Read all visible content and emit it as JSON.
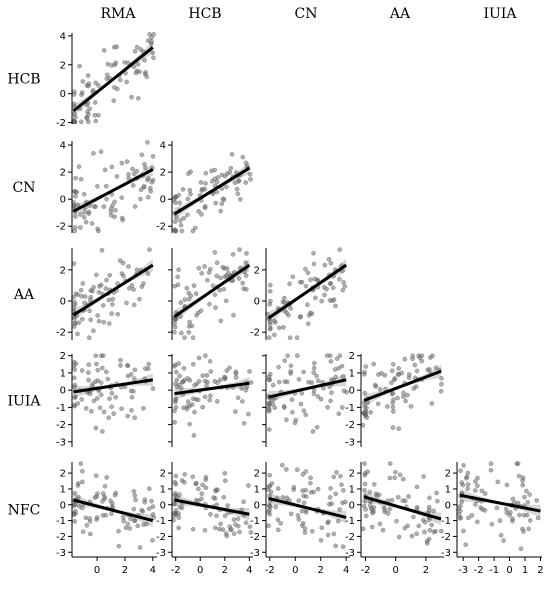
{
  "chart_data": {
    "type": "scatter",
    "variables": [
      "RMA",
      "HCB",
      "CN",
      "AA",
      "IUIA",
      "NFC"
    ],
    "column_titles": [
      "RMA",
      "HCB",
      "CN",
      "AA",
      "IUIA"
    ],
    "row_titles": [
      "HCB",
      "CN",
      "AA",
      "IUIA",
      "NFC"
    ],
    "x_ranges": {
      "RMA": [
        -1.8,
        4.3
      ],
      "HCB": [
        -2.3,
        4.3
      ],
      "CN": [
        -2.3,
        4.3
      ],
      "AA": [
        -2.3,
        3.2
      ],
      "IUIA": [
        -3.4,
        2.1
      ]
    },
    "x_ticks": {
      "RMA": [
        0,
        2,
        4
      ],
      "HCB": [
        -2,
        0,
        2,
        4
      ],
      "CN": [
        -2,
        0,
        2,
        4
      ],
      "AA": [
        -2,
        0,
        2
      ],
      "IUIA": [
        -3,
        -2,
        -1,
        0,
        1,
        2
      ]
    },
    "y_ranges": {
      "HCB": [
        -2.1,
        4.2
      ],
      "CN": [
        -2.5,
        4.3
      ],
      "AA": [
        -2.5,
        3.4
      ],
      "IUIA": [
        -3.3,
        2.1
      ],
      "NFC": [
        -3.3,
        2.7
      ]
    },
    "y_ticks": {
      "HCB": [
        -2,
        0,
        2,
        4
      ],
      "CN": [
        -2,
        0,
        2,
        4
      ],
      "AA": [
        -2,
        0,
        2
      ],
      "IUIA": [
        -3,
        -2,
        -1,
        0,
        1,
        2
      ],
      "NFC": [
        -3,
        -2,
        -1,
        0,
        1,
        2
      ]
    },
    "panels": [
      {
        "row": "HCB",
        "col": "RMA",
        "fit": [
          [
            -1.7,
            -1.2
          ],
          [
            4.0,
            3.2
          ]
        ]
      },
      {
        "row": "CN",
        "col": "RMA",
        "fit": [
          [
            -1.7,
            -0.9
          ],
          [
            4.0,
            2.2
          ]
        ]
      },
      {
        "row": "CN",
        "col": "HCB",
        "fit": [
          [
            -2.1,
            -1.1
          ],
          [
            4.0,
            2.3
          ]
        ]
      },
      {
        "row": "AA",
        "col": "RMA",
        "fit": [
          [
            -1.7,
            -0.9
          ],
          [
            4.0,
            2.3
          ]
        ]
      },
      {
        "row": "AA",
        "col": "HCB",
        "fit": [
          [
            -2.1,
            -1.0
          ],
          [
            4.0,
            2.3
          ]
        ]
      },
      {
        "row": "AA",
        "col": "CN",
        "fit": [
          [
            -2.1,
            -1.1
          ],
          [
            4.0,
            2.3
          ]
        ]
      },
      {
        "row": "IUIA",
        "col": "RMA",
        "fit": [
          [
            -1.7,
            -0.1
          ],
          [
            4.0,
            0.6
          ]
        ]
      },
      {
        "row": "IUIA",
        "col": "HCB",
        "fit": [
          [
            -2.1,
            -0.2
          ],
          [
            4.0,
            0.4
          ]
        ]
      },
      {
        "row": "IUIA",
        "col": "CN",
        "fit": [
          [
            -2.1,
            -0.4
          ],
          [
            4.0,
            0.6
          ]
        ]
      },
      {
        "row": "IUIA",
        "col": "AA",
        "fit": [
          [
            -2.1,
            -0.6
          ],
          [
            3.0,
            1.1
          ]
        ]
      },
      {
        "row": "NFC",
        "col": "RMA",
        "fit": [
          [
            -1.7,
            0.3
          ],
          [
            4.0,
            -1.0
          ]
        ]
      },
      {
        "row": "NFC",
        "col": "HCB",
        "fit": [
          [
            -2.1,
            0.3
          ],
          [
            4.0,
            -0.6
          ]
        ]
      },
      {
        "row": "NFC",
        "col": "CN",
        "fit": [
          [
            -2.1,
            0.4
          ],
          [
            4.0,
            -0.8
          ]
        ]
      },
      {
        "row": "NFC",
        "col": "AA",
        "fit": [
          [
            -2.1,
            0.5
          ],
          [
            3.0,
            -0.9
          ]
        ]
      },
      {
        "row": "NFC",
        "col": "IUIA",
        "fit": [
          [
            -3.2,
            0.6
          ],
          [
            2.0,
            -0.4
          ]
        ]
      }
    ],
    "grid": false,
    "legend": "none"
  }
}
